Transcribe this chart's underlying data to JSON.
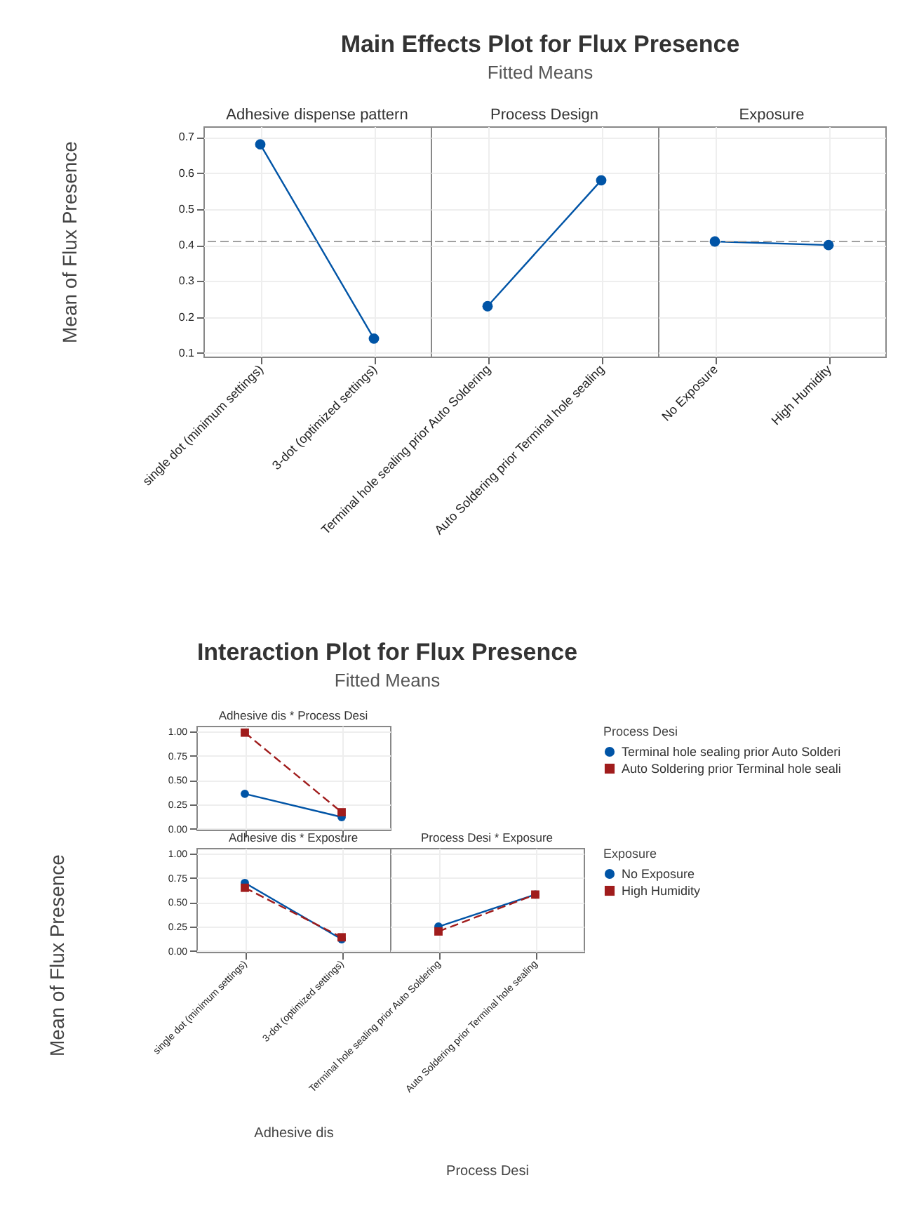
{
  "chart_data": [
    {
      "type": "other",
      "title": "Main Effects Plot for Flux Presence",
      "subtitle": "Fitted Means"
    },
    {
      "type": "line",
      "title": "Adhesive dispense pattern",
      "ylabel": "Mean of Flux Presence",
      "categories": [
        "single dot (minimum settings)",
        "3-dot (optimized settings)"
      ],
      "values": [
        0.68,
        0.14
      ],
      "color": "#0054a6",
      "marker": "circle",
      "ylim": [
        0.09,
        0.73
      ],
      "yticks": [
        0.1,
        0.2,
        0.3,
        0.4,
        0.5,
        0.6,
        0.7
      ],
      "ref_lines": [
        {
          "axis": "y",
          "value": 0.41,
          "color": "#a0a0a0",
          "line_style": "dashed"
        }
      ],
      "grid": true
    },
    {
      "type": "line",
      "title": "Process Design",
      "categories": [
        "Terminal hole sealing prior Auto Soldering",
        "Auto Soldering prior Terminal hole sealing"
      ],
      "values": [
        0.23,
        0.58
      ],
      "color": "#0054a6",
      "marker": "circle",
      "ylim": [
        0.09,
        0.73
      ],
      "yticks": [
        0.1,
        0.2,
        0.3,
        0.4,
        0.5,
        0.6,
        0.7
      ],
      "tick_labels": "x",
      "ref_lines": [
        {
          "axis": "y",
          "value": 0.41,
          "color": "#a0a0a0",
          "line_style": "dashed"
        }
      ],
      "grid": true
    },
    {
      "type": "line",
      "title": "Exposure",
      "categories": [
        "No Exposure",
        "High Humidity"
      ],
      "values": [
        0.41,
        0.4
      ],
      "color": "#0054a6",
      "marker": "circle",
      "ylim": [
        0.09,
        0.73
      ],
      "yticks": [
        0.1,
        0.2,
        0.3,
        0.4,
        0.5,
        0.6,
        0.7
      ],
      "tick_labels": "x",
      "ref_lines": [
        {
          "axis": "y",
          "value": 0.41,
          "color": "#a0a0a0",
          "line_style": "dashed"
        }
      ],
      "grid": true
    },
    {
      "type": "other",
      "title": "Interaction Plot for Flux Presence",
      "subtitle": "Fitted Means"
    },
    {
      "type": "line",
      "title": "Adhesive dis * Process Desi",
      "categories": [
        null,
        null
      ],
      "legend_title": "Process Desi",
      "legend": "right",
      "tick_labels": "y",
      "grid": true,
      "ylim": [
        -0.01,
        1.06
      ],
      "yticks": [
        {
          "value": 0,
          "label": "0.00"
        },
        {
          "value": 0.25,
          "label": "0.25"
        },
        {
          "value": 0.5,
          "label": "0.50"
        },
        {
          "value": 0.75,
          "label": "0.75"
        },
        {
          "value": 1,
          "label": "1.00"
        }
      ],
      "series": [
        {
          "name": "Terminal hole sealing prior Auto Solderi",
          "color": "#0054a6",
          "marker": "circle",
          "line_style": "solid",
          "values": [
            0.36,
            0.12
          ]
        },
        {
          "name": "Auto Soldering prior Terminal hole seali",
          "color": "#a01c1c",
          "marker": "square",
          "line_style": "dashed",
          "values": [
            0.99,
            0.17
          ]
        }
      ]
    },
    {
      "type": "line",
      "title": "Adhesive dis * Exposure",
      "xlabel": "Adhesive dis",
      "ylabel": "Mean of Flux Presence",
      "categories": [
        "single dot (minimum settings)",
        "3-dot (optimized settings)"
      ],
      "grid": true,
      "ylim": [
        -0.01,
        1.06
      ],
      "yticks": [
        {
          "value": 0,
          "label": "0.00"
        },
        {
          "value": 0.25,
          "label": "0.25"
        },
        {
          "value": 0.5,
          "label": "0.50"
        },
        {
          "value": 0.75,
          "label": "0.75"
        },
        {
          "value": 1,
          "label": "1.00"
        }
      ],
      "series": [
        {
          "color": "#0054a6",
          "marker": "circle",
          "line_style": "solid",
          "values": [
            0.7,
            0.12
          ]
        },
        {
          "color": "#a01c1c",
          "marker": "square",
          "line_style": "dashed",
          "values": [
            0.65,
            0.14
          ]
        }
      ]
    },
    {
      "type": "line",
      "title": "Process Desi * Exposure",
      "xlabel": "Process Desi",
      "categories": [
        "Terminal hole sealing prior Auto Soldering",
        "Auto Soldering prior Terminal hole sealing"
      ],
      "legend_title": "Exposure",
      "legend": "right",
      "tick_labels": "x",
      "grid": true,
      "ylim": [
        -0.01,
        1.06
      ],
      "yticks": [
        0,
        0.25,
        0.5,
        0.75,
        1
      ],
      "series": [
        {
          "name": "No Exposure",
          "color": "#0054a6",
          "marker": "circle",
          "line_style": "solid",
          "values": [
            0.25,
            0.58
          ]
        },
        {
          "name": "High Humidity",
          "color": "#a01c1c",
          "marker": "square",
          "line_style": "dashed",
          "values": [
            0.2,
            0.58
          ]
        }
      ]
    }
  ]
}
